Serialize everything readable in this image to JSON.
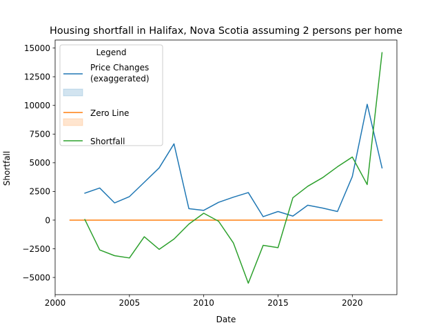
{
  "chart_data": {
    "type": "line",
    "title": "Housing shortfall in Halifax, Nova Scotia assuming 2 persons per home",
    "xlabel": "Date",
    "ylabel": "Shortfall",
    "xlim": [
      2000,
      2023
    ],
    "ylim": [
      -6500,
      15700
    ],
    "x_ticks": [
      2000,
      2005,
      2010,
      2015,
      2020
    ],
    "y_ticks": [
      -5000,
      -2500,
      0,
      2500,
      5000,
      7500,
      10000,
      12500,
      15000
    ],
    "x_tick_labels": [
      "2000",
      "2005",
      "2010",
      "2015",
      "2020"
    ],
    "y_tick_labels": [
      "−5000",
      "−2500",
      "0",
      "2500",
      "5000",
      "7500",
      "10000",
      "12500",
      "15000"
    ],
    "grid": false,
    "legend": {
      "title": "Legend",
      "placement": "top-left",
      "entries": [
        {
          "label": "Price Changes\n(exaggerated)",
          "kind": "line",
          "color": "#1f77b4"
        },
        {
          "label": "",
          "kind": "patch",
          "color": "#1f77b4"
        },
        {
          "label": "Zero Line",
          "kind": "line",
          "color": "#ff7f0e"
        },
        {
          "label": "",
          "kind": "patch",
          "color": "#ff7f0e"
        },
        {
          "label": "Shortfall",
          "kind": "line",
          "color": "#2ca02c"
        }
      ]
    },
    "series": [
      {
        "name": "Price Changes (exaggerated)",
        "color": "#1f77b4",
        "x": [
          2002,
          2003,
          2004,
          2005,
          2006,
          2007,
          2008,
          2009,
          2010,
          2011,
          2012,
          2013,
          2014,
          2015,
          2016,
          2017,
          2018,
          2019,
          2020,
          2021,
          2022
        ],
        "y": [
          2350,
          2800,
          1500,
          2050,
          3300,
          4550,
          6650,
          1000,
          850,
          1550,
          2000,
          2400,
          300,
          750,
          350,
          1300,
          1050,
          750,
          3800,
          10100,
          4550
        ]
      },
      {
        "name": "Zero Line",
        "color": "#ff7f0e",
        "x": [
          2001,
          2002,
          2003,
          2004,
          2005,
          2006,
          2007,
          2008,
          2009,
          2010,
          2011,
          2012,
          2013,
          2014,
          2015,
          2016,
          2017,
          2018,
          2019,
          2020,
          2021,
          2022
        ],
        "y": [
          0,
          0,
          0,
          0,
          0,
          0,
          0,
          0,
          0,
          0,
          0,
          0,
          0,
          0,
          0,
          0,
          0,
          0,
          0,
          0,
          0,
          0
        ]
      },
      {
        "name": "Shortfall",
        "color": "#2ca02c",
        "x": [
          2002,
          2003,
          2004,
          2005,
          2006,
          2007,
          2008,
          2009,
          2010,
          2011,
          2012,
          2013,
          2014,
          2015,
          2016,
          2017,
          2018,
          2019,
          2020,
          2021,
          2022
        ],
        "y": [
          50,
          -2600,
          -3100,
          -3300,
          -1450,
          -2550,
          -1650,
          -350,
          600,
          -100,
          -2000,
          -5500,
          -2200,
          -2400,
          1950,
          2950,
          3700,
          4650,
          5500,
          3100,
          14600
        ]
      }
    ]
  }
}
